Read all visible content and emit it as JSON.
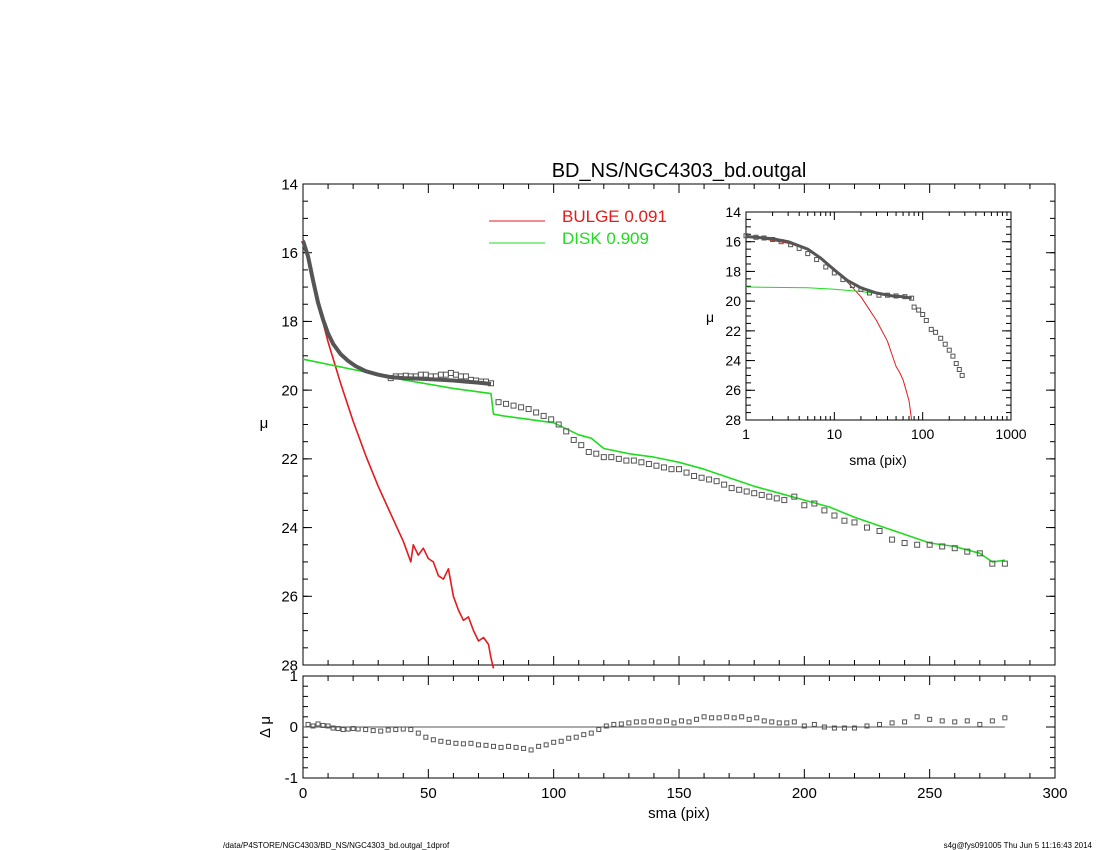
{
  "title": "BD_NS/NGC4303_bd.outgal",
  "footer": {
    "left": "/data/P4STORE/NGC4303/BD_NS/NGC4303_bd.outgal_1dprof",
    "right": "s4g@fys091005  Thu Jun  5 11:16:43 2014"
  },
  "colors": {
    "bulge": "#e41a1c",
    "disk": "#1fdc1f",
    "data": "#555555",
    "axis": "#000000"
  },
  "chart_data": [
    {
      "id": "main",
      "type": "line",
      "xlabel": "",
      "ylabel": "μ",
      "xlim": [
        0,
        300
      ],
      "ylim": [
        28,
        14
      ],
      "ylim_note": "inverted magnitude axis",
      "yticks": [
        14,
        16,
        18,
        20,
        22,
        24,
        26,
        28
      ],
      "legend": [
        {
          "name": "BULGE",
          "value": "0.091",
          "color": "#e41a1c"
        },
        {
          "name": "DISK",
          "value": "0.909",
          "color": "#1fdc1f"
        }
      ],
      "series": [
        {
          "name": "BULGE",
          "kind": "line",
          "color": "#e41a1c",
          "x": [
            0,
            2,
            5,
            10,
            15,
            20,
            25,
            30,
            35,
            40,
            43,
            44,
            46,
            48,
            50,
            52,
            54,
            56,
            58,
            60,
            62,
            64,
            66,
            68,
            70,
            72,
            74,
            75,
            76
          ],
          "y": [
            15.6,
            16.2,
            17.2,
            18.6,
            19.8,
            20.9,
            21.9,
            22.8,
            23.6,
            24.4,
            25.0,
            24.5,
            24.8,
            24.6,
            24.9,
            25.0,
            25.4,
            25.5,
            25.2,
            26.0,
            26.4,
            26.7,
            26.6,
            27.0,
            27.3,
            27.2,
            27.4,
            27.8,
            28.1
          ]
        },
        {
          "name": "DISK",
          "kind": "line",
          "color": "#1fdc1f",
          "x": [
            0,
            20,
            40,
            60,
            75,
            76,
            80,
            90,
            100,
            110,
            115,
            120,
            130,
            140,
            150,
            160,
            170,
            180,
            190,
            200,
            210,
            220,
            230,
            240,
            250,
            260,
            270,
            275,
            280
          ],
          "y": [
            19.1,
            19.4,
            19.7,
            19.95,
            20.1,
            20.7,
            20.75,
            20.85,
            20.95,
            21.3,
            21.4,
            21.7,
            21.85,
            21.95,
            22.1,
            22.3,
            22.55,
            22.8,
            23.0,
            23.2,
            23.4,
            23.7,
            23.95,
            24.2,
            24.45,
            24.55,
            24.75,
            25.0,
            24.95
          ]
        },
        {
          "name": "model",
          "kind": "line",
          "color": "#555555",
          "x": [
            0,
            2,
            4,
            6,
            8,
            10,
            12,
            15,
            18,
            21,
            25,
            30,
            35,
            40,
            45,
            50,
            55,
            60,
            65,
            70,
            75
          ],
          "y": [
            15.65,
            16.1,
            16.8,
            17.45,
            17.95,
            18.35,
            18.65,
            18.95,
            19.15,
            19.3,
            19.45,
            19.55,
            19.62,
            19.65,
            19.66,
            19.68,
            19.7,
            19.72,
            19.75,
            19.78,
            19.82
          ]
        },
        {
          "name": "observed",
          "kind": "markers",
          "color": "#555555",
          "x": [
            35,
            37,
            39,
            41,
            43,
            45,
            47,
            49,
            51,
            53,
            55,
            57,
            59,
            61,
            63,
            65,
            67,
            69,
            71,
            73,
            75,
            78,
            81,
            84,
            87,
            90,
            93,
            96,
            99,
            102,
            105,
            108,
            111,
            114,
            117,
            120,
            123,
            126,
            129,
            132,
            135,
            138,
            141,
            144,
            147,
            150,
            153,
            156,
            159,
            162,
            165,
            168,
            171,
            174,
            177,
            180,
            183,
            186,
            189,
            192,
            196,
            200,
            204,
            208,
            212,
            216,
            220,
            225,
            230,
            235,
            240,
            245,
            250,
            255,
            260,
            265,
            270,
            275,
            280
          ],
          "y": [
            19.65,
            19.6,
            19.6,
            19.58,
            19.6,
            19.6,
            19.55,
            19.55,
            19.6,
            19.6,
            19.55,
            19.55,
            19.5,
            19.55,
            19.6,
            19.6,
            19.7,
            19.72,
            19.75,
            19.75,
            19.8,
            20.35,
            20.4,
            20.45,
            20.5,
            20.55,
            20.65,
            20.75,
            20.85,
            21.0,
            21.2,
            21.45,
            21.6,
            21.8,
            21.85,
            21.95,
            21.95,
            22.0,
            22.05,
            22.05,
            22.1,
            22.15,
            22.2,
            22.25,
            22.3,
            22.3,
            22.4,
            22.5,
            22.55,
            22.6,
            22.65,
            22.75,
            22.85,
            22.9,
            22.95,
            23.0,
            23.05,
            23.1,
            23.15,
            23.2,
            23.1,
            23.35,
            23.3,
            23.5,
            23.65,
            23.8,
            23.85,
            24.0,
            24.1,
            24.35,
            24.45,
            24.5,
            24.5,
            24.55,
            24.6,
            24.7,
            24.75,
            25.05,
            25.05
          ]
        }
      ]
    },
    {
      "id": "residual",
      "type": "scatter",
      "xlabel": "sma (pix)",
      "ylabel": "Δ μ",
      "xlim": [
        0,
        300
      ],
      "ylim": [
        -1,
        1
      ],
      "xticks": [
        0,
        50,
        100,
        150,
        200,
        250,
        300
      ],
      "yticks": [
        -1,
        0,
        1
      ],
      "zero_line": true,
      "series": [
        {
          "name": "residual",
          "kind": "markers",
          "color": "#555555",
          "x": [
            2,
            4,
            6,
            8,
            10,
            12,
            14,
            16,
            18,
            20,
            22,
            25,
            28,
            31,
            34,
            37,
            40,
            43,
            46,
            49,
            52,
            55,
            58,
            61,
            64,
            67,
            70,
            73,
            76,
            79,
            82,
            85,
            88,
            91,
            94,
            97,
            100,
            103,
            106,
            109,
            112,
            115,
            118,
            121,
            124,
            127,
            130,
            133,
            136,
            139,
            142,
            145,
            148,
            151,
            154,
            157,
            160,
            163,
            166,
            169,
            172,
            175,
            178,
            181,
            184,
            187,
            190,
            193,
            196,
            200,
            204,
            208,
            212,
            216,
            220,
            225,
            230,
            235,
            240,
            245,
            250,
            255,
            260,
            265,
            270,
            275,
            280
          ],
          "y": [
            0.05,
            0.02,
            0.06,
            0.03,
            0.02,
            -0.02,
            -0.03,
            -0.05,
            -0.04,
            -0.03,
            -0.04,
            -0.05,
            -0.07,
            -0.08,
            -0.06,
            -0.05,
            -0.04,
            -0.05,
            -0.12,
            -0.2,
            -0.25,
            -0.28,
            -0.3,
            -0.32,
            -0.33,
            -0.32,
            -0.35,
            -0.36,
            -0.38,
            -0.4,
            -0.38,
            -0.4,
            -0.42,
            -0.45,
            -0.38,
            -0.35,
            -0.3,
            -0.28,
            -0.22,
            -0.2,
            -0.15,
            -0.12,
            -0.05,
            0.02,
            0.05,
            0.06,
            0.08,
            0.1,
            0.1,
            0.12,
            0.1,
            0.12,
            0.08,
            0.12,
            0.1,
            0.15,
            0.2,
            0.18,
            0.18,
            0.2,
            0.18,
            0.2,
            0.15,
            0.18,
            0.12,
            0.1,
            0.08,
            0.08,
            0.1,
            0.02,
            0.05,
            0.0,
            -0.02,
            -0.02,
            -0.02,
            0.02,
            0.05,
            0.08,
            0.1,
            0.2,
            0.15,
            0.12,
            0.1,
            0.12,
            0.05,
            0.12,
            0.18
          ]
        }
      ]
    },
    {
      "id": "inset",
      "type": "line",
      "xlabel": "sma (pix)",
      "ylabel": "μ",
      "xscale": "log",
      "xlim": [
        1,
        1000
      ],
      "ylim": [
        28,
        14
      ],
      "xticks": [
        1,
        10,
        100,
        1000
      ],
      "yticks": [
        14,
        16,
        18,
        20,
        22,
        24,
        26,
        28
      ],
      "series": [
        {
          "name": "BULGE",
          "kind": "line",
          "color": "#e41a1c",
          "x": [
            1,
            3,
            5,
            10,
            15,
            20,
            30,
            40,
            45,
            50,
            55,
            60,
            65,
            70,
            75
          ],
          "y": [
            15.6,
            16.1,
            16.5,
            17.8,
            18.9,
            19.7,
            21.3,
            22.7,
            23.6,
            24.4,
            24.8,
            25.3,
            26.0,
            26.7,
            28.0
          ]
        },
        {
          "name": "DISK",
          "kind": "line",
          "color": "#1fdc1f",
          "x": [
            1,
            5,
            10,
            20,
            40,
            75
          ],
          "y": [
            19.05,
            19.1,
            19.2,
            19.35,
            19.6,
            19.75
          ]
        },
        {
          "name": "model",
          "kind": "line",
          "color": "#555555",
          "x": [
            1,
            2,
            3,
            5,
            7,
            10,
            14,
            20,
            30,
            45,
            60,
            75
          ],
          "y": [
            15.65,
            15.8,
            16.0,
            16.5,
            17.1,
            17.9,
            18.6,
            19.1,
            19.45,
            19.65,
            19.7,
            19.8
          ]
        },
        {
          "name": "observed",
          "kind": "markers",
          "color": "#555555",
          "x": [
            1.0,
            1.3,
            1.6,
            2.0,
            2.5,
            3.2,
            4.0,
            5.0,
            6.3,
            8.0,
            10,
            12.5,
            16,
            20,
            25,
            32,
            40,
            50,
            63,
            75,
            80,
            90,
            100,
            110,
            125,
            140,
            160,
            180,
            200,
            220,
            240,
            260,
            280
          ],
          "y": [
            15.6,
            15.7,
            15.75,
            15.85,
            16.0,
            16.2,
            16.45,
            16.8,
            17.2,
            17.7,
            18.1,
            18.55,
            18.95,
            19.2,
            19.45,
            19.6,
            19.6,
            19.65,
            19.7,
            19.8,
            20.4,
            20.6,
            20.9,
            21.3,
            21.9,
            22.1,
            22.5,
            22.9,
            23.3,
            23.7,
            24.2,
            24.6,
            25.0
          ]
        }
      ]
    }
  ]
}
